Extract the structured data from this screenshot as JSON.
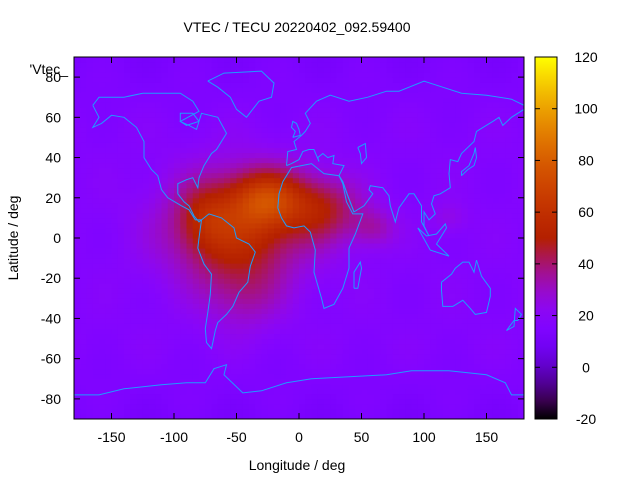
{
  "chart_data": {
    "type": "heatmap",
    "title": "VTEC / TECU 20220402_092.59400",
    "xlabel": "Longitude / deg",
    "ylabel": "Latitude / deg",
    "series_label": "'Vtec_",
    "xlim": [
      -180,
      180
    ],
    "ylim": [
      -90,
      90
    ],
    "x_ticks": [
      -150,
      -100,
      -50,
      0,
      50,
      100,
      150
    ],
    "y_ticks": [
      -80,
      -60,
      -40,
      -20,
      0,
      20,
      40,
      60,
      80
    ],
    "colorbar": {
      "range": [
        -20,
        120
      ],
      "ticks": [
        -20,
        0,
        20,
        40,
        60,
        80,
        100,
        120
      ],
      "palette": "gnuplot"
    },
    "field_blobs": [
      {
        "lon": -50,
        "lat": 5,
        "slon": 55,
        "slat": 28,
        "amp": 40
      },
      {
        "lon": -25,
        "lat": 20,
        "slon": 28,
        "slat": 14,
        "amp": 32
      },
      {
        "lon": 20,
        "lat": 15,
        "slon": 30,
        "slat": 16,
        "amp": 25
      },
      {
        "lon": 60,
        "lat": 5,
        "slon": 18,
        "slat": 10,
        "amp": 15
      },
      {
        "lon": -75,
        "lat": 10,
        "slon": 20,
        "slat": 15,
        "amp": 12
      },
      {
        "lon": -45,
        "lat": -30,
        "slon": 30,
        "slat": 18,
        "amp": 12
      },
      {
        "lon": 120,
        "lat": 10,
        "slon": 15,
        "slat": 8,
        "amp": 8
      }
    ],
    "field_base": 17
  }
}
